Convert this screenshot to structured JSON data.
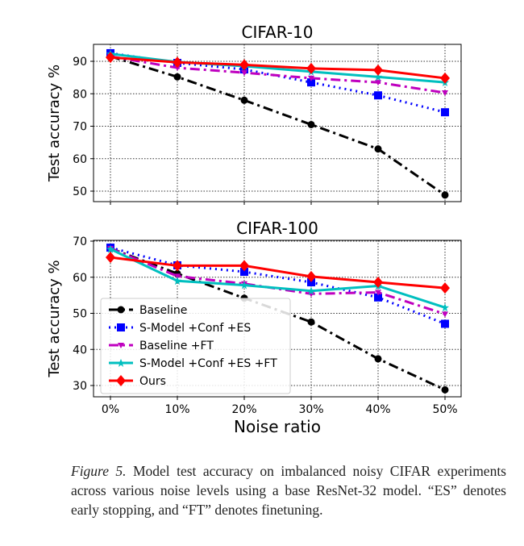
{
  "chart_data": [
    {
      "type": "line",
      "title": "CIFAR-10",
      "xlabel": "",
      "ylabel": "Test accuracy %",
      "categories": [
        "0%",
        "10%",
        "20%",
        "30%",
        "40%",
        "50%"
      ],
      "yticks": [
        50,
        60,
        70,
        80,
        90
      ],
      "ylim": [
        47,
        95
      ],
      "grid": true,
      "series": [
        {
          "name": "Baseline",
          "color": "#000000",
          "marker": "circle",
          "dash": "dashdot",
          "values": [
            91.5,
            85.2,
            78.0,
            70.5,
            63.0,
            48.8
          ]
        },
        {
          "name": "S-Model +Conf +ES",
          "color": "#0000ff",
          "marker": "square",
          "dash": "dotted",
          "values": [
            92.5,
            89.5,
            87.5,
            83.5,
            79.5,
            74.3
          ]
        },
        {
          "name": "Baseline +FT",
          "color": "#bf00bf",
          "marker": "tri",
          "dash": "dashdot",
          "values": [
            91.5,
            88.0,
            86.5,
            84.8,
            83.5,
            80.3
          ]
        },
        {
          "name": "S-Model +Conf +ES +FT",
          "color": "#00bfbf",
          "marker": "star",
          "dash": "solid",
          "values": [
            92.3,
            89.8,
            88.5,
            86.8,
            85.2,
            83.5
          ]
        },
        {
          "name": "Ours",
          "color": "#ff0000",
          "marker": "diamond",
          "dash": "solid",
          "values": [
            91.2,
            89.7,
            88.9,
            87.8,
            87.3,
            84.8
          ]
        }
      ]
    },
    {
      "type": "line",
      "title": "CIFAR-100",
      "xlabel": "Noise ratio",
      "ylabel": "Test accuracy %",
      "categories": [
        "0%",
        "10%",
        "20%",
        "30%",
        "40%",
        "50%"
      ],
      "yticks": [
        30,
        40,
        50,
        60,
        70
      ],
      "ylim": [
        27,
        70
      ],
      "grid": true,
      "legend": "lower-left",
      "series": [
        {
          "name": "Baseline",
          "color": "#000000",
          "marker": "circle",
          "dash": "dashdot",
          "values": [
            68.0,
            61.0,
            54.2,
            47.6,
            37.4,
            28.8
          ]
        },
        {
          "name": "S-Model +Conf +ES",
          "color": "#0000ff",
          "marker": "square",
          "dash": "dotted",
          "values": [
            68.2,
            63.3,
            61.5,
            58.6,
            54.4,
            47.1
          ]
        },
        {
          "name": "Baseline +FT",
          "color": "#bf00bf",
          "marker": "tri",
          "dash": "dashdot",
          "values": [
            68.0,
            60.3,
            58.2,
            55.4,
            55.8,
            49.8
          ]
        },
        {
          "name": "S-Model +Conf +ES +FT",
          "color": "#00bfbf",
          "marker": "star",
          "dash": "solid",
          "values": [
            67.8,
            59.0,
            57.8,
            56.2,
            57.6,
            51.6
          ]
        },
        {
          "name": "Ours",
          "color": "#ff0000",
          "marker": "diamond",
          "dash": "solid",
          "values": [
            65.5,
            63.2,
            63.2,
            60.2,
            58.6,
            57.0
          ]
        }
      ]
    }
  ],
  "caption": {
    "label": "Figure 5.",
    "text": " Model test accuracy on imbalanced noisy CIFAR experiments across various noise levels using a base ResNet-32 model. “ES” denotes early stopping, and “FT” denotes finetuning."
  }
}
